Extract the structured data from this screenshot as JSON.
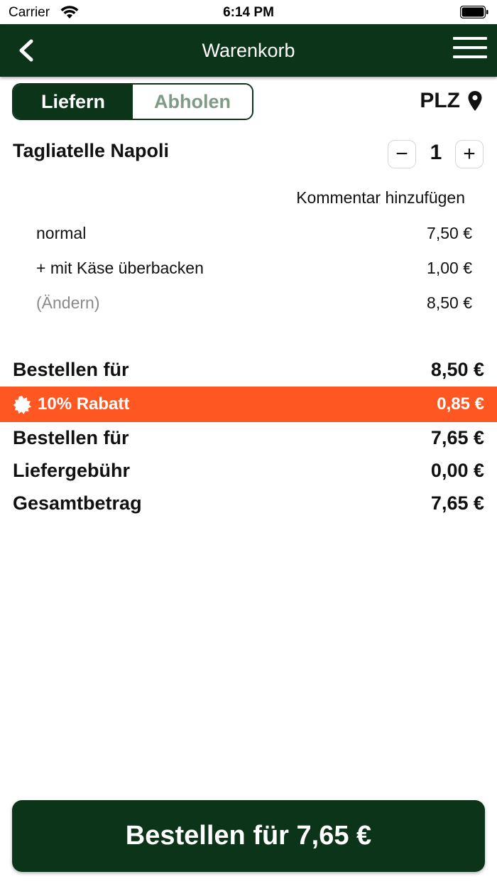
{
  "status": {
    "carrier": "Carrier",
    "time": "6:14 PM"
  },
  "nav": {
    "title": "Warenkorb",
    "back_icon": "chevron-left-icon",
    "menu_icon": "hamburger-menu-icon"
  },
  "mode": {
    "deliver": "Liefern",
    "pickup": "Abholen",
    "selected": "Liefern"
  },
  "plz": {
    "label": "PLZ",
    "icon": "location-pin-icon"
  },
  "item": {
    "name": "Tagliatelle Napoli",
    "quantity": "1",
    "minus": "−",
    "plus": "+",
    "comment_link": "Kommentar hinzufügen",
    "options": [
      {
        "label": "normal",
        "price": "7,50 €"
      },
      {
        "label": "+ mit Käse überbacken",
        "price": "1,00 €"
      }
    ],
    "change_label": "(Ändern)",
    "item_total": "8,50 €"
  },
  "summary": {
    "subtotal_label": "Bestellen für",
    "subtotal_value": "8,50 €",
    "discount_label": "10% Rabatt",
    "discount_value": "0,85 €",
    "after_discount_label": "Bestellen für",
    "after_discount_value": "7,65 €",
    "delivery_fee_label": "Liefergebühr",
    "delivery_fee_value": "0,00 €",
    "total_label": "Gesamtbetrag",
    "total_value": "7,65 €"
  },
  "checkout": {
    "label": "Bestellen für 7,65 €"
  },
  "colors": {
    "primary": "#0b3418",
    "discount": "#ff5722",
    "inactive_text": "#7f9a85"
  }
}
